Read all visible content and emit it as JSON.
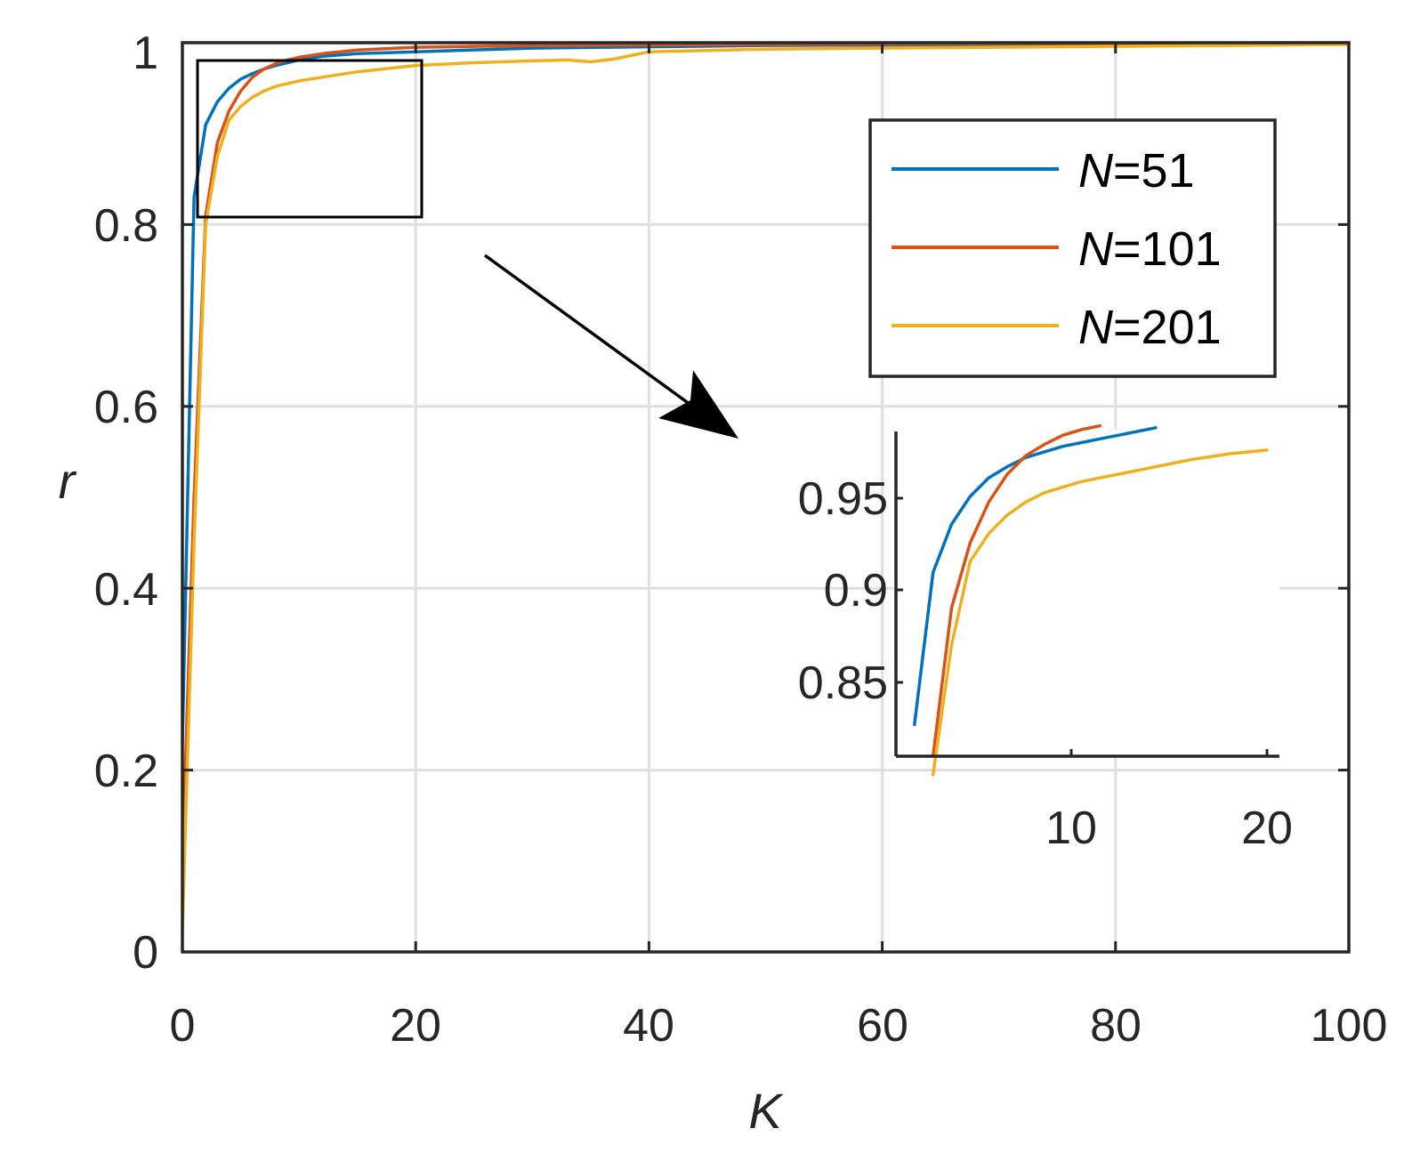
{
  "chart_data": {
    "type": "line",
    "xlabel": "K",
    "ylabel": "r",
    "xlim": [
      0,
      100
    ],
    "ylim": [
      0,
      1
    ],
    "grid": true,
    "legend_position": "top-right",
    "xticks": [
      "0",
      "20",
      "40",
      "60",
      "80",
      "100"
    ],
    "yticks": [
      "0",
      "0.2",
      "0.4",
      "0.6",
      "0.8",
      "1"
    ],
    "colors": {
      "N51": "#0072BD",
      "N101": "#D95319",
      "N201": "#EDB120"
    },
    "series": [
      {
        "name": "N=51",
        "name_prefix": "N",
        "name_suffix": "=51",
        "color": "#0072BD",
        "x": [
          0,
          1,
          2,
          3,
          4,
          5,
          6,
          7,
          8,
          9,
          10,
          12,
          15,
          20,
          30,
          50,
          70,
          100
        ],
        "y": [
          0.23,
          0.83,
          0.91,
          0.935,
          0.95,
          0.96,
          0.966,
          0.971,
          0.975,
          0.978,
          0.981,
          0.985,
          0.988,
          0.99,
          0.994,
          0.997,
          0.998,
          0.999
        ]
      },
      {
        "name": "N=101",
        "name_prefix": "N",
        "name_suffix": "=101",
        "color": "#D95319",
        "x": [
          0,
          1,
          2,
          3,
          4,
          5,
          6,
          7,
          8,
          9,
          10,
          12,
          15,
          20,
          30,
          50,
          70,
          100
        ],
        "y": [
          0.1,
          0.5,
          0.81,
          0.89,
          0.925,
          0.947,
          0.962,
          0.971,
          0.977,
          0.981,
          0.984,
          0.988,
          0.992,
          0.995,
          0.997,
          0.998,
          0.999,
          1.0
        ]
      },
      {
        "name": "N=201",
        "name_prefix": "N",
        "name_suffix": "=201",
        "color": "#EDB120",
        "x": [
          0,
          1,
          2,
          3,
          4,
          5,
          6,
          7,
          8,
          10,
          12,
          15,
          20,
          25,
          30,
          33,
          35,
          37,
          40,
          50,
          60,
          70,
          80,
          90,
          100
        ],
        "y": [
          0.025,
          0.45,
          0.8,
          0.875,
          0.915,
          0.93,
          0.94,
          0.947,
          0.952,
          0.958,
          0.962,
          0.968,
          0.975,
          0.978,
          0.98,
          0.981,
          0.979,
          0.982,
          0.99,
          0.993,
          0.994,
          0.995,
          0.996,
          0.997,
          0.998
        ]
      }
    ],
    "zoom_box": {
      "xlim": [
        1.3,
        20.5
      ],
      "ylim": [
        0.81,
        0.983
      ]
    },
    "inset": {
      "xlim": [
        0,
        21
      ],
      "ylim": [
        0.81,
        0.985
      ],
      "xticks": [
        "10",
        "20"
      ],
      "yticks": [
        "0.85",
        "0.9",
        "0.95"
      ],
      "series": [
        {
          "color": "#0072BD",
          "x": [
            1,
            2,
            3,
            4,
            5,
            6,
            7,
            8,
            9,
            10,
            11,
            12,
            13,
            14
          ],
          "y": [
            0.827,
            0.909,
            0.935,
            0.95,
            0.96,
            0.966,
            0.971,
            0.974,
            0.977,
            0.979,
            0.981,
            0.983,
            0.985,
            0.987
          ]
        },
        {
          "color": "#D95319",
          "x": [
            2,
            3,
            4,
            5,
            6,
            7,
            8,
            9,
            10,
            11
          ],
          "y": [
            0.81,
            0.89,
            0.925,
            0.947,
            0.962,
            0.972,
            0.978,
            0.983,
            0.986,
            0.988
          ]
        },
        {
          "color": "#EDB120",
          "x": [
            2,
            3,
            4,
            5,
            6,
            7,
            8,
            10,
            12,
            14,
            16,
            18,
            20
          ],
          "y": [
            0.8,
            0.87,
            0.915,
            0.93,
            0.94,
            0.947,
            0.952,
            0.958,
            0.962,
            0.966,
            0.97,
            0.973,
            0.975
          ]
        }
      ]
    }
  }
}
